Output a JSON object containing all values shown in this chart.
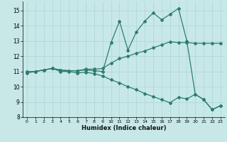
{
  "xlabel": "Humidex (Indice chaleur)",
  "bg_color": "#c8e8e8",
  "grid_color": "#b0d8d8",
  "line_color": "#2e7d6e",
  "xlim": [
    -0.5,
    23.5
  ],
  "ylim": [
    8.0,
    15.6
  ],
  "xticks": [
    0,
    1,
    2,
    3,
    4,
    5,
    6,
    7,
    8,
    9,
    10,
    11,
    12,
    13,
    14,
    15,
    16,
    17,
    18,
    19,
    20,
    21,
    22,
    23
  ],
  "yticks": [
    8,
    9,
    10,
    11,
    12,
    13,
    14,
    15
  ],
  "line1_x": [
    0,
    1,
    2,
    3,
    4,
    5,
    6,
    7,
    8,
    9,
    10,
    11,
    12,
    13,
    14,
    15,
    16,
    17,
    18,
    19,
    20,
    21,
    22,
    23
  ],
  "line1_y": [
    11.0,
    11.0,
    11.1,
    11.2,
    11.0,
    11.0,
    10.9,
    10.95,
    10.85,
    10.7,
    10.45,
    10.25,
    10.0,
    9.8,
    9.55,
    9.35,
    9.15,
    8.95,
    9.3,
    9.2,
    9.5,
    9.15,
    8.5,
    8.75
  ],
  "line2_x": [
    0,
    1,
    2,
    3,
    4,
    5,
    6,
    7,
    8,
    9,
    10,
    11,
    12,
    13,
    14,
    15,
    16,
    17,
    18,
    19,
    20,
    21,
    22,
    23
  ],
  "line2_y": [
    11.0,
    11.0,
    11.1,
    11.2,
    11.1,
    11.05,
    11.05,
    11.15,
    11.15,
    11.2,
    11.55,
    11.85,
    12.0,
    12.2,
    12.35,
    12.55,
    12.75,
    12.95,
    12.9,
    12.9,
    12.85,
    12.85,
    12.85,
    12.85
  ],
  "line3_x": [
    0,
    1,
    2,
    3,
    4,
    5,
    6,
    7,
    8,
    9,
    10,
    11,
    12,
    13,
    14,
    15,
    16,
    17,
    18,
    19,
    20,
    21,
    22,
    23
  ],
  "line3_y": [
    10.9,
    11.0,
    11.1,
    11.2,
    11.1,
    11.05,
    11.05,
    11.1,
    11.05,
    11.0,
    12.9,
    14.3,
    12.4,
    13.6,
    14.3,
    14.85,
    14.4,
    14.75,
    15.15,
    13.0,
    9.5,
    9.15,
    8.5,
    8.75
  ]
}
